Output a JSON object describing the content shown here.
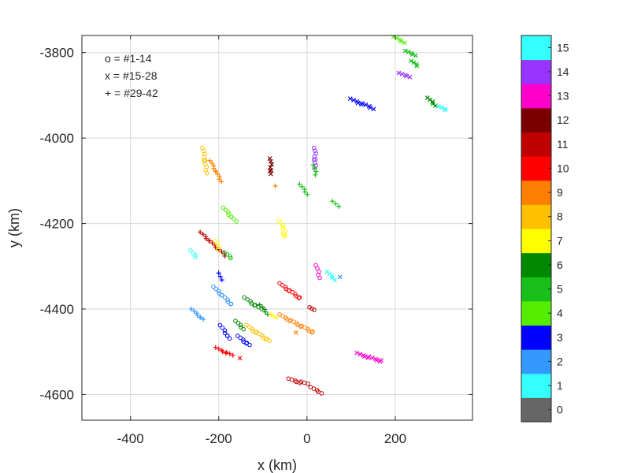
{
  "chart_data": {
    "type": "scatter",
    "xlabel": "x (km)",
    "ylabel": "y (km)",
    "xlim": [
      -510,
      375
    ],
    "ylim": [
      -4660,
      -3760
    ],
    "xticks": [
      -400,
      -200,
      0,
      200
    ],
    "yticks": [
      -4600,
      -4400,
      -4200,
      -4000,
      -3800
    ],
    "grid": true,
    "legend_text": [
      "o = #1-14",
      "x = #15-28",
      "+ = #29-42"
    ],
    "legend_position": "top-left",
    "colorbar": {
      "labels": [
        "0",
        "1",
        "2",
        "3",
        "4",
        "5",
        "6",
        "7",
        "8",
        "9",
        "10",
        "11",
        "12",
        "13",
        "14",
        "15"
      ],
      "colors": [
        "#666666",
        "#33ffff",
        "#3399ff",
        "#0000ff",
        "#55ee00",
        "#19c019",
        "#008800",
        "#ffff00",
        "#ffc000",
        "#ff8000",
        "#ff0000",
        "#c00000",
        "#7a0000",
        "#ff00cc",
        "#9933ff",
        "#33ffff"
      ]
    },
    "series": [
      {
        "marker": "o",
        "color": "#ffc000",
        "points": [
          [
            -235,
            -4025
          ],
          [
            -228,
            -4080
          ]
        ]
      },
      {
        "marker": "+",
        "color": "#ff8000",
        "points": [
          [
            -218,
            -4055
          ],
          [
            -195,
            -4100
          ]
        ]
      },
      {
        "marker": "x",
        "color": "#7a0000",
        "points": [
          [
            -82,
            -4050
          ],
          [
            -82,
            -4085
          ]
        ]
      },
      {
        "marker": "o",
        "color": "#9933ff",
        "points": [
          [
            18,
            -4025
          ],
          [
            18,
            -4070
          ]
        ]
      },
      {
        "marker": "+",
        "color": "#19c019",
        "points": [
          [
            16,
            -4065
          ],
          [
            20,
            -4085
          ]
        ]
      },
      {
        "marker": "+",
        "color": "#19c019",
        "points": [
          [
            -15,
            -4110
          ],
          [
            0,
            -4130
          ]
        ]
      },
      {
        "marker": "+",
        "color": "#ff8000",
        "points": [
          [
            -72,
            -4112
          ]
        ]
      },
      {
        "marker": "+",
        "color": "#19c019",
        "points": [
          [
            60,
            -4150
          ],
          [
            70,
            -4160
          ]
        ]
      },
      {
        "marker": "o",
        "color": "#55ee00",
        "points": [
          [
            -188,
            -4165
          ],
          [
            -162,
            -4195
          ]
        ]
      },
      {
        "marker": "o",
        "color": "#ffff00",
        "points": [
          [
            -62,
            -4195
          ],
          [
            -50,
            -4215
          ]
        ]
      },
      {
        "marker": "o",
        "color": "#ffff00",
        "points": [
          [
            -52,
            -4225
          ],
          [
            -52,
            -4230
          ]
        ]
      },
      {
        "marker": "+",
        "color": "#c00000",
        "points": [
          [
            -240,
            -4222
          ],
          [
            -185,
            -4275
          ]
        ]
      },
      {
        "marker": "o",
        "color": "#ffff00",
        "points": [
          [
            -205,
            -4243
          ],
          [
            -200,
            -4260
          ]
        ]
      },
      {
        "marker": "o",
        "color": "#33ffff",
        "points": [
          [
            -262,
            -4265
          ],
          [
            -252,
            -4278
          ]
        ]
      },
      {
        "marker": "o",
        "color": "#19c019",
        "points": [
          [
            -185,
            -4270
          ],
          [
            -172,
            -4280
          ]
        ]
      },
      {
        "marker": "x",
        "color": "#33ffff",
        "points": [
          [
            48,
            -4315
          ],
          [
            62,
            -4330
          ]
        ]
      },
      {
        "marker": "o",
        "color": "#ff00cc",
        "points": [
          [
            22,
            -4300
          ],
          [
            28,
            -4325
          ]
        ]
      },
      {
        "marker": "x",
        "color": "#3399ff",
        "points": [
          [
            75,
            -4325
          ]
        ]
      },
      {
        "marker": "+",
        "color": "#0000ff",
        "points": [
          [
            -198,
            -4318
          ],
          [
            -195,
            -4332
          ]
        ]
      },
      {
        "marker": "o",
        "color": "#3399ff",
        "points": [
          [
            -210,
            -4350
          ],
          [
            -170,
            -4390
          ]
        ]
      },
      {
        "marker": "o",
        "color": "#ff0000",
        "points": [
          [
            -60,
            -4342
          ],
          [
            -15,
            -4375
          ]
        ]
      },
      {
        "marker": "o",
        "color": "#008800",
        "points": [
          [
            -140,
            -4375
          ],
          [
            -105,
            -4400
          ]
        ]
      },
      {
        "marker": "+",
        "color": "#008800",
        "points": [
          [
            -105,
            -4392
          ],
          [
            -90,
            -4410
          ]
        ]
      },
      {
        "marker": "+",
        "color": "#ffff00",
        "points": [
          [
            -80,
            -4415
          ],
          [
            -72,
            -4420
          ]
        ]
      },
      {
        "marker": "o",
        "color": "#ff8000",
        "points": [
          [
            -60,
            -4415
          ],
          [
            15,
            -4455
          ]
        ]
      },
      {
        "marker": "o",
        "color": "#c00000",
        "points": [
          [
            8,
            -4398
          ],
          [
            14,
            -4402
          ]
        ]
      },
      {
        "marker": "+",
        "color": "#3399ff",
        "points": [
          [
            -260,
            -4402
          ],
          [
            -235,
            -4425
          ]
        ]
      },
      {
        "marker": "o",
        "color": "#0000ff",
        "points": [
          [
            -195,
            -4440
          ],
          [
            -175,
            -4470
          ]
        ]
      },
      {
        "marker": "o",
        "color": "#0000ff",
        "points": [
          [
            -155,
            -4465
          ],
          [
            -130,
            -4485
          ]
        ]
      },
      {
        "marker": "o",
        "color": "#ffc000",
        "points": [
          [
            -135,
            -4440
          ],
          [
            -85,
            -4475
          ]
        ]
      },
      {
        "marker": "o",
        "color": "#008800",
        "points": [
          [
            -160,
            -4430
          ],
          [
            -145,
            -4445
          ]
        ]
      },
      {
        "marker": "x",
        "color": "#ff8000",
        "points": [
          [
            -25,
            -4455
          ]
        ]
      },
      {
        "marker": "+",
        "color": "#ff0000",
        "points": [
          [
            -205,
            -4492
          ],
          [
            -170,
            -4508
          ]
        ]
      },
      {
        "marker": "x",
        "color": "#ff0000",
        "points": [
          [
            -152,
            -4515
          ]
        ]
      },
      {
        "marker": "x",
        "color": "#ff00cc",
        "points": [
          [
            115,
            -4505
          ],
          [
            170,
            -4522
          ]
        ]
      },
      {
        "marker": "o",
        "color": "#c00000",
        "points": [
          [
            -40,
            -4565
          ],
          [
            0,
            -4575
          ]
        ]
      },
      {
        "marker": "o",
        "color": "#c00000",
        "points": [
          [
            10,
            -4585
          ],
          [
            32,
            -4595
          ]
        ]
      },
      {
        "marker": "x",
        "color": "#0000ff",
        "points": [
          [
            100,
            -3910
          ],
          [
            150,
            -3930
          ]
        ]
      },
      {
        "marker": "x",
        "color": "#55ee00",
        "points": [
          [
            198,
            -3765
          ],
          [
            220,
            -3775
          ]
        ]
      },
      {
        "marker": "x",
        "color": "#19c019",
        "points": [
          [
            225,
            -3798
          ],
          [
            245,
            -3805
          ]
        ]
      },
      {
        "marker": "x",
        "color": "#19c019",
        "points": [
          [
            238,
            -3822
          ],
          [
            250,
            -3830
          ]
        ]
      },
      {
        "marker": "x",
        "color": "#9933ff",
        "points": [
          [
            210,
            -3850
          ],
          [
            232,
            -3855
          ]
        ]
      },
      {
        "marker": "x",
        "color": "#008800",
        "points": [
          [
            275,
            -3908
          ],
          [
            290,
            -3922
          ]
        ]
      },
      {
        "marker": "x",
        "color": "#33ffff",
        "points": [
          [
            300,
            -3928
          ],
          [
            315,
            -3933
          ]
        ]
      }
    ]
  }
}
